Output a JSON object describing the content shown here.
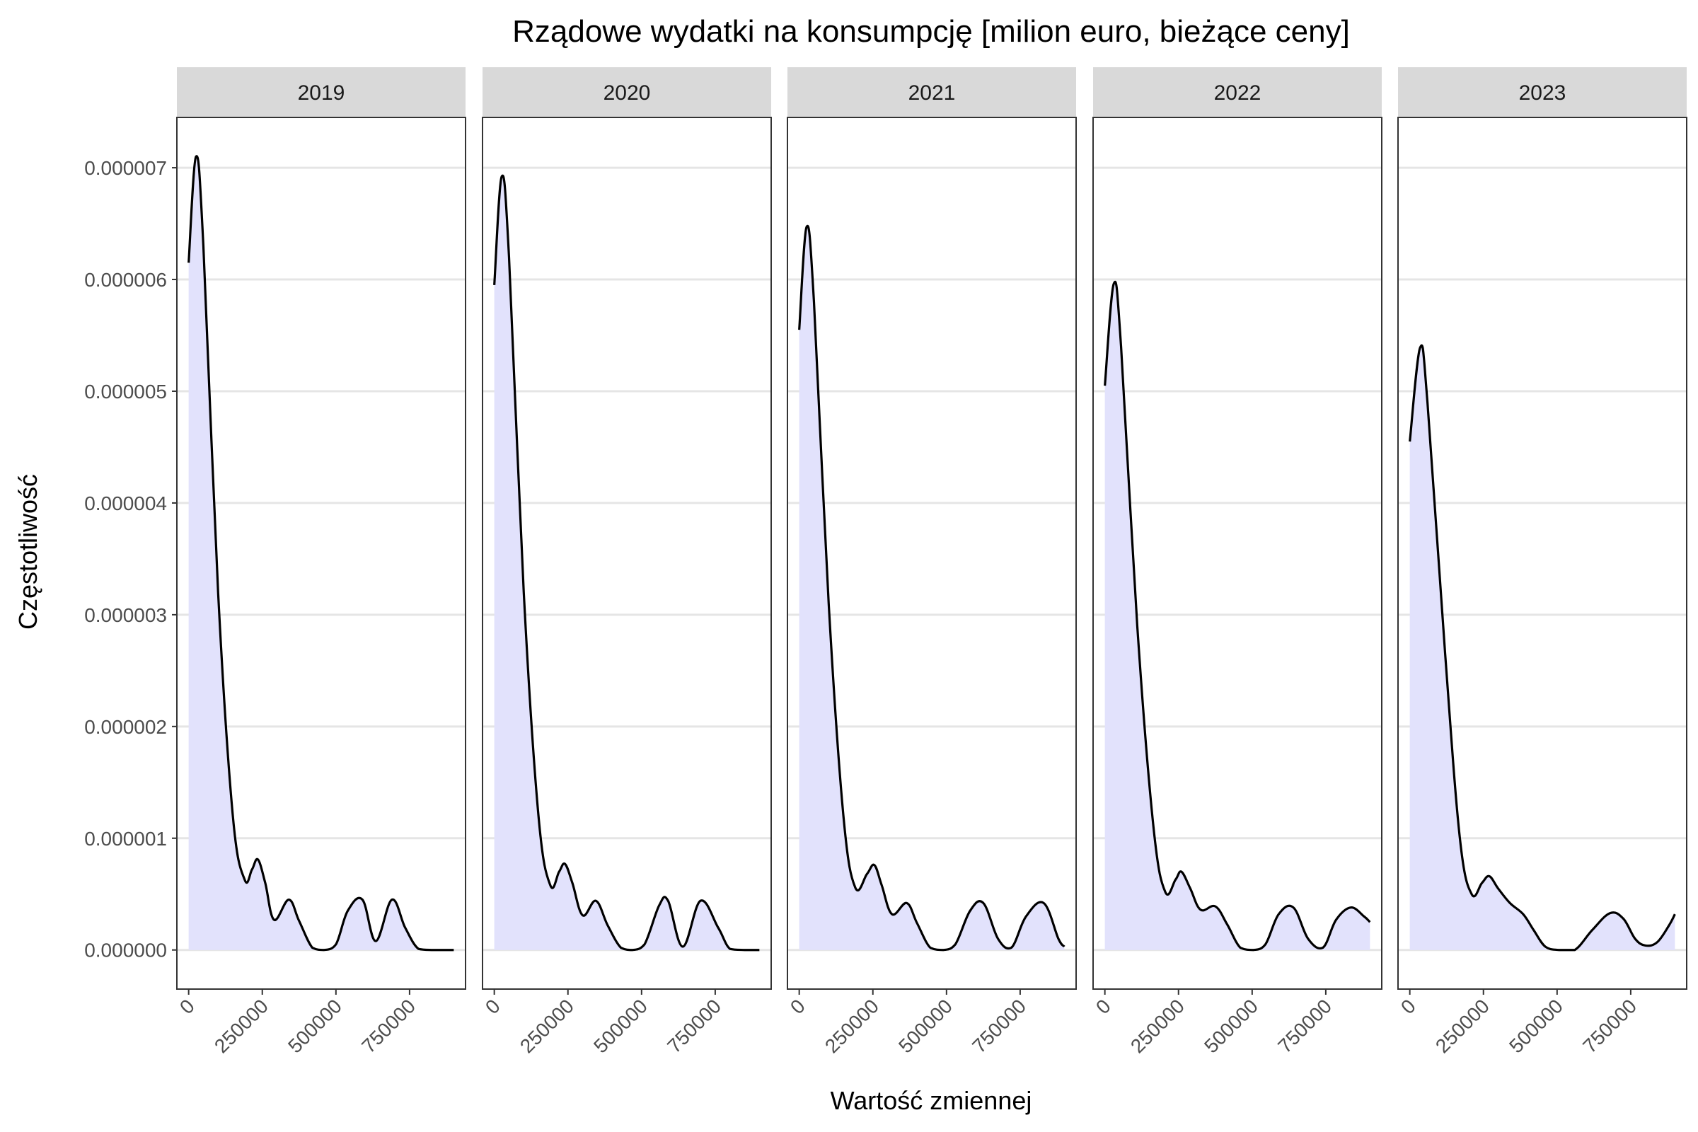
{
  "chart_data": {
    "type": "area",
    "title": "Rządowe wydatki na konsumpcję [milion euro, bieżące ceny]",
    "xlabel": "Wartość zmiennej",
    "ylabel": "Częstotliwość",
    "xlim": [
      -40000,
      940000
    ],
    "ylim": [
      -3.5e-07,
      7.45e-06
    ],
    "x_ticks": [
      0,
      250000,
      500000,
      750000
    ],
    "x_tick_labels": [
      "0",
      "250000",
      "500000",
      "750000"
    ],
    "y_ticks": [
      0,
      1e-06,
      2e-06,
      3e-06,
      4e-06,
      5e-06,
      6e-06,
      7e-06
    ],
    "y_tick_labels": [
      "0.000000",
      "0.000001",
      "0.000002",
      "0.000003",
      "0.000004",
      "0.000005",
      "0.000006",
      "0.000007"
    ],
    "grid": true,
    "colors": {
      "fill": "#e2e2fc",
      "line": "#000000",
      "grid": "#e5e5e5",
      "strip": "#d9d9d9",
      "panel_border": "#333333"
    },
    "panels": [
      {
        "label": "2019",
        "x": [
          0,
          25000,
          50000,
          100000,
          150000,
          190000,
          215000,
          235000,
          260000,
          290000,
          340000,
          375000,
          420000,
          460000,
          500000,
          540000,
          590000,
          635000,
          690000,
          735000,
          780000,
          830000,
          900000
        ],
        "y": [
          6.15e-06,
          7.1e-06,
          6.3e-06,
          3.2e-06,
          1.2e-06,
          6.3e-07,
          7.2e-07,
          8.1e-07,
          6e-07,
          2.7e-07,
          4.5e-07,
          2.6e-07,
          2e-08,
          0.0,
          5e-08,
          3.5e-07,
          4.5e-07,
          8e-08,
          4.5e-07,
          2e-07,
          1e-08,
          0.0,
          0.0
        ]
      },
      {
        "label": "2020",
        "x": [
          0,
          25000,
          50000,
          100000,
          150000,
          190000,
          220000,
          240000,
          265000,
          300000,
          345000,
          385000,
          430000,
          470000,
          510000,
          560000,
          590000,
          640000,
          700000,
          760000,
          800000,
          850000,
          900000
        ],
        "y": [
          5.95e-06,
          6.92e-06,
          6.2e-06,
          3.2e-06,
          1.2e-06,
          5.8e-07,
          7e-07,
          7.7e-07,
          6e-07,
          3.1e-07,
          4.4e-07,
          2.2e-07,
          2e-08,
          0.0,
          5e-08,
          4e-07,
          4.4e-07,
          3e-08,
          4.4e-07,
          2e-07,
          1e-08,
          0.0,
          0.0
        ]
      },
      {
        "label": "2021",
        "x": [
          0,
          25000,
          50000,
          100000,
          150000,
          190000,
          230000,
          255000,
          280000,
          315000,
          365000,
          400000,
          445000,
          490000,
          530000,
          580000,
          625000,
          675000,
          720000,
          770000,
          830000,
          880000,
          900000
        ],
        "y": [
          5.55e-06,
          6.47e-06,
          5.8e-06,
          3.1e-06,
          1.2e-06,
          5.6e-07,
          6.8e-07,
          7.6e-07,
          5.8e-07,
          3.2e-07,
          4.2e-07,
          2.4e-07,
          2e-08,
          0.0,
          5e-08,
          3.5e-07,
          4.2e-07,
          1e-07,
          2e-08,
          3e-07,
          4.2e-07,
          1e-07,
          3e-08
        ]
      },
      {
        "label": "2022",
        "x": [
          0,
          30000,
          55000,
          110000,
          165000,
          205000,
          240000,
          260000,
          290000,
          325000,
          375000,
          415000,
          460000,
          505000,
          545000,
          590000,
          640000,
          690000,
          740000,
          785000,
          835000,
          880000,
          900000
        ],
        "y": [
          5.05e-06,
          5.96e-06,
          5.4e-06,
          2.9e-06,
          1.1e-06,
          5.2e-07,
          6.3e-07,
          7e-07,
          5.5e-07,
          3.6e-07,
          3.9e-07,
          2.3e-07,
          2e-08,
          0.0,
          5e-08,
          3.2e-07,
          3.8e-07,
          1e-07,
          2e-08,
          2.7e-07,
          3.8e-07,
          3e-07,
          2.5e-07
        ]
      },
      {
        "label": "2023",
        "x": [
          0,
          35000,
          60000,
          120000,
          170000,
          210000,
          245000,
          270000,
          300000,
          340000,
          385000,
          420000,
          460000,
          505000,
          560000,
          620000,
          680000,
          725000,
          765000,
          800000,
          840000,
          880000,
          900000
        ],
        "y": [
          4.55e-06,
          5.39e-06,
          4.9e-06,
          2.65e-06,
          1e-06,
          5e-07,
          6e-07,
          6.6e-07,
          5.5e-07,
          4.2e-07,
          3.2e-07,
          1.8e-07,
          3e-08,
          0.0,
          0.0,
          1.8e-07,
          3.3e-07,
          2.8e-07,
          1e-07,
          4e-08,
          7e-08,
          2.2e-07,
          3.2e-07
        ]
      }
    ]
  }
}
